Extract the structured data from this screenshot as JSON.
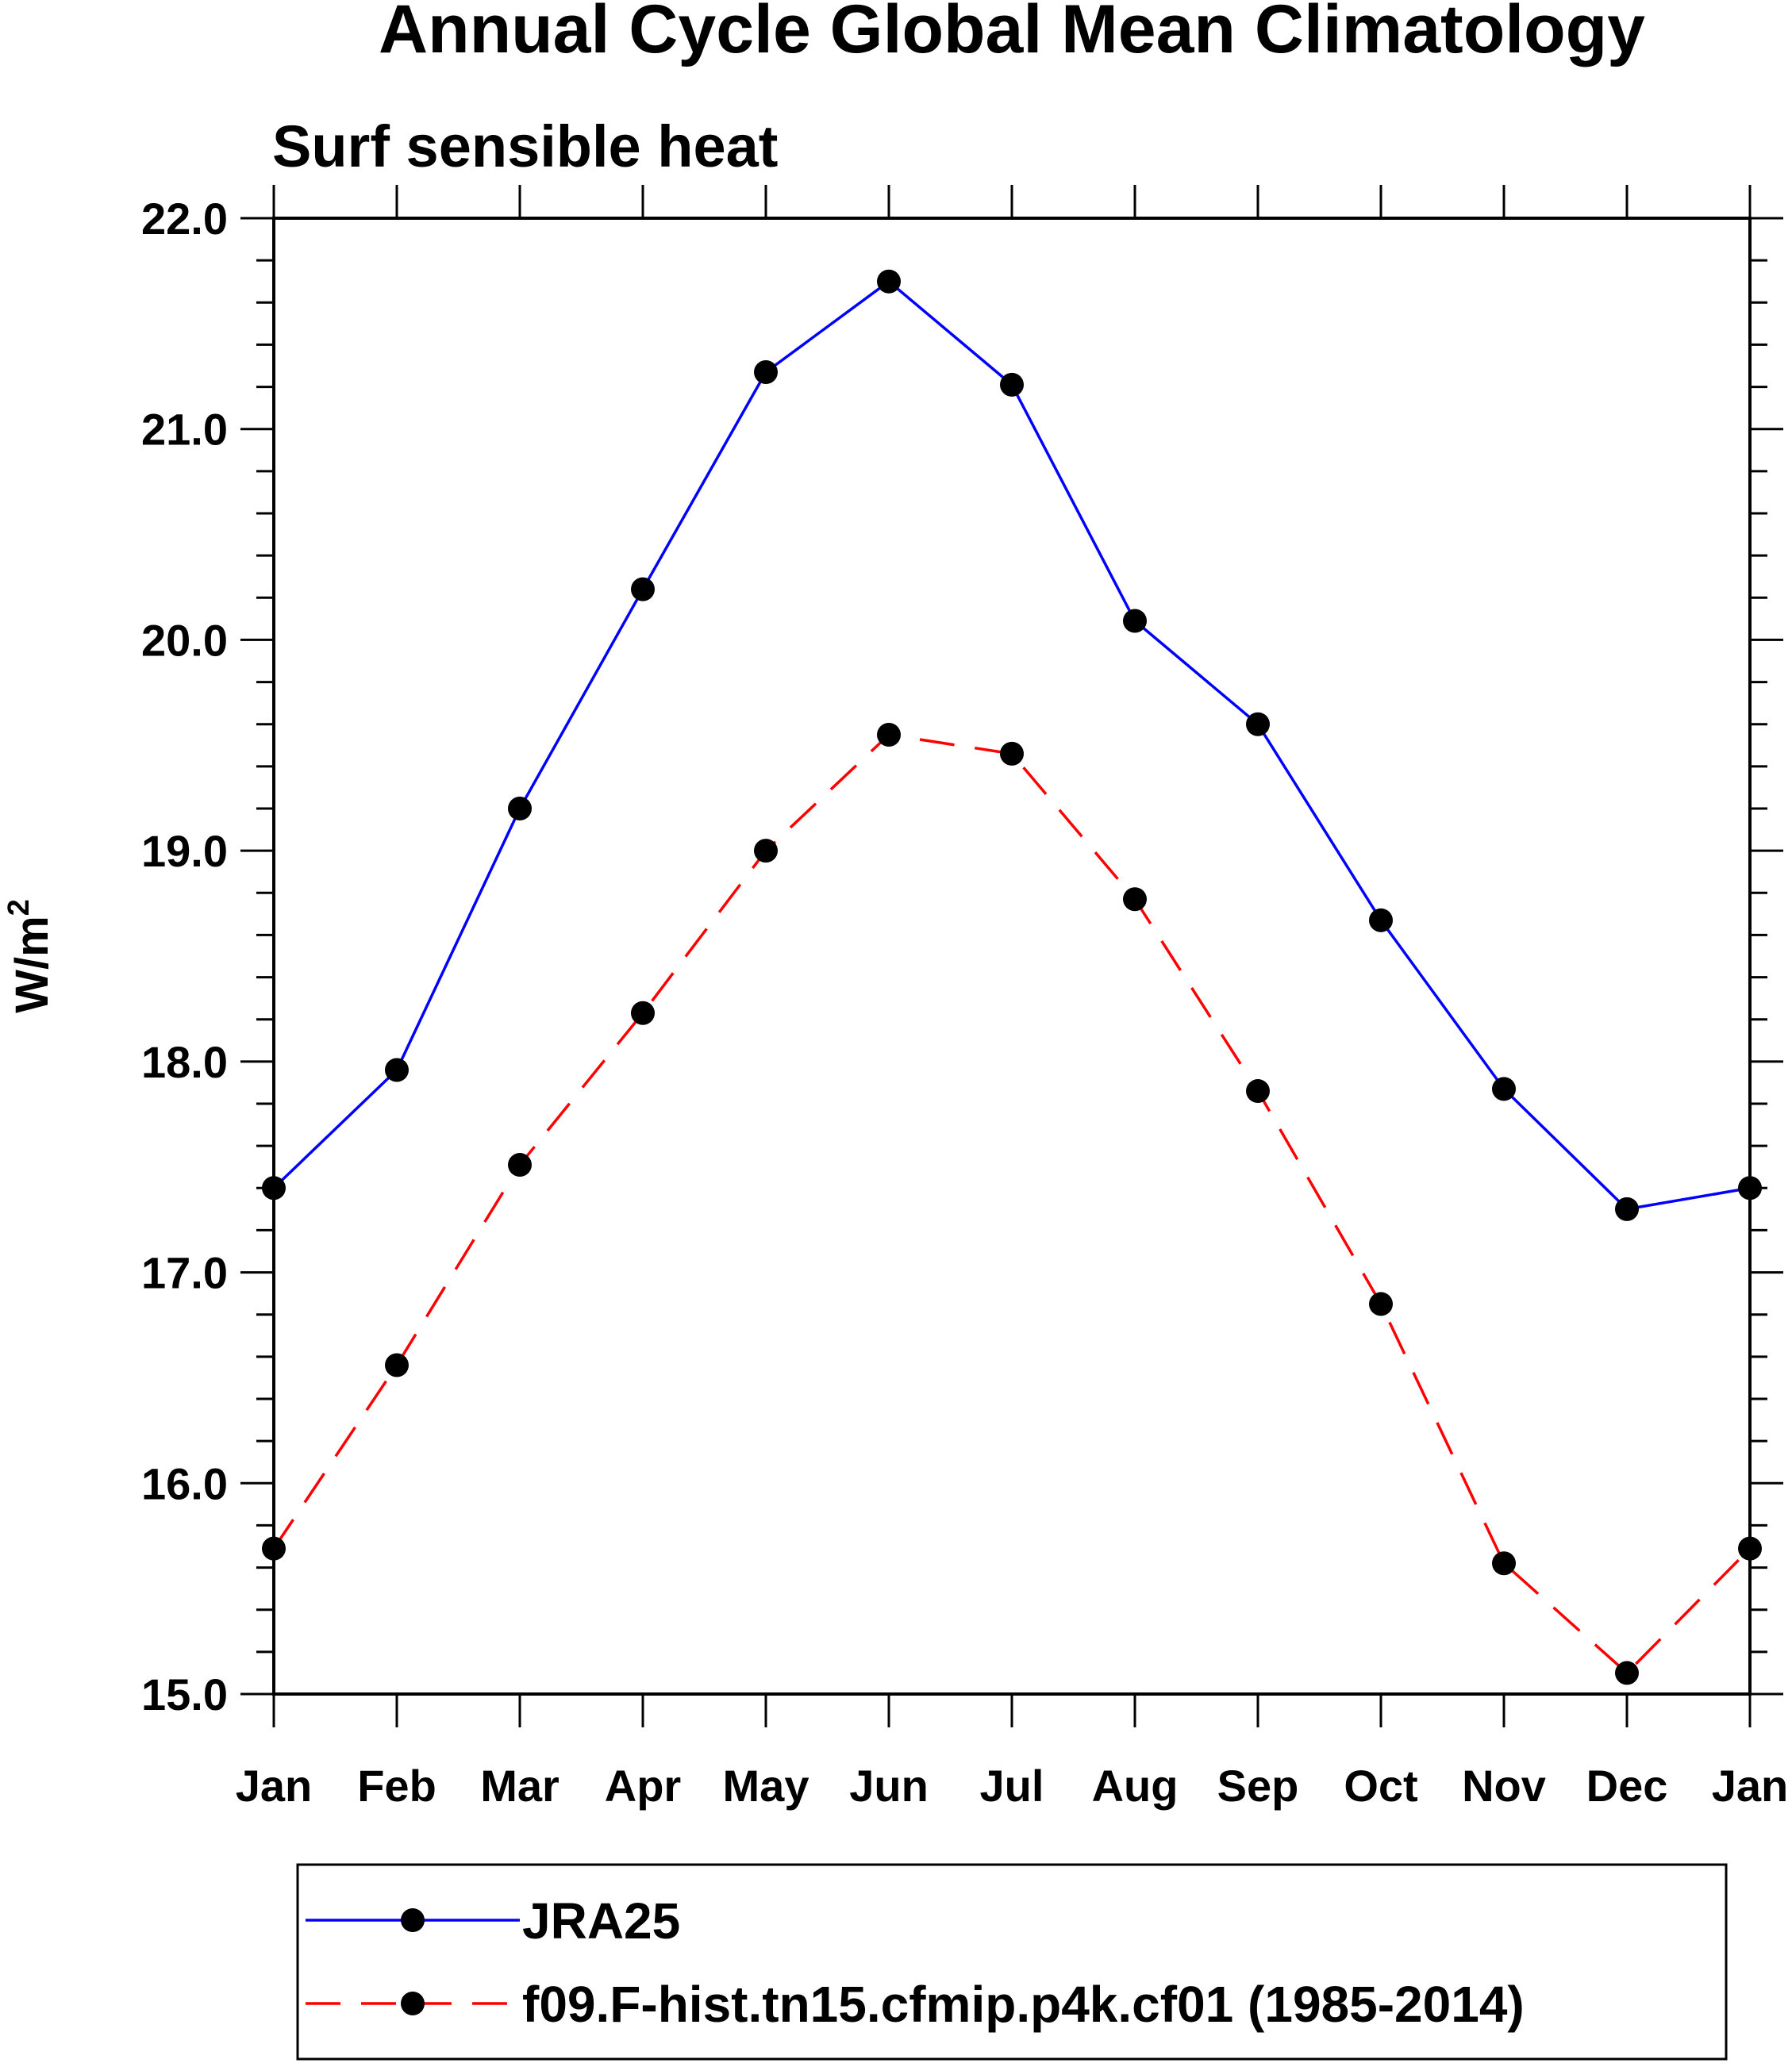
{
  "chart_data": {
    "type": "line",
    "title": "Annual Cycle Global Mean Climatology",
    "subtitle": "Surf sensible heat",
    "ylabel": "W/m",
    "ylabel_superscript": "2",
    "xlabel": "",
    "categories": [
      "Jan",
      "Feb",
      "Mar",
      "Apr",
      "May",
      "Jun",
      "Jul",
      "Aug",
      "Sep",
      "Oct",
      "Nov",
      "Dec",
      "Jan"
    ],
    "ylim": [
      15.0,
      22.0
    ],
    "yticks": [
      15.0,
      16.0,
      17.0,
      18.0,
      19.0,
      20.0,
      21.0,
      22.0
    ],
    "ytick_labels": [
      "15.0",
      "16.0",
      "17.0",
      "18.0",
      "19.0",
      "20.0",
      "21.0",
      "22.0"
    ],
    "y_minor_step": 0.2,
    "grid": false,
    "legend_position": "bottom",
    "series": [
      {
        "name": "JRA25",
        "color": "#0000ff",
        "dash": "solid",
        "values": [
          17.4,
          17.96,
          19.2,
          20.24,
          21.27,
          21.7,
          21.21,
          20.09,
          19.6,
          18.67,
          17.87,
          17.3,
          17.4
        ]
      },
      {
        "name": "f09.F-hist.tn15.cfmip.p4k.cf01 (1985-2014)",
        "color": "#ff0000",
        "dash": "dashed",
        "values": [
          15.69,
          16.56,
          17.51,
          18.23,
          19.0,
          19.55,
          19.46,
          18.77,
          17.86,
          16.85,
          15.62,
          15.1,
          15.69
        ]
      }
    ]
  }
}
